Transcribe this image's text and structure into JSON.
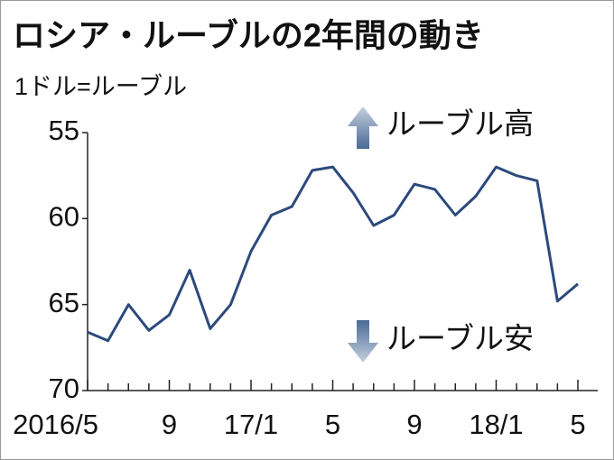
{
  "chart_data": {
    "type": "line",
    "title": "ロシア・ルーブルの2年間の動き",
    "subtitle": "1ドル=ルーブル",
    "annotations": [
      "ルーブル高",
      "ルーブル安"
    ],
    "categories": [
      "2016/5",
      null,
      null,
      null,
      "9",
      null,
      null,
      null,
      "17/1",
      null,
      null,
      null,
      "5",
      null,
      null,
      null,
      "9",
      null,
      null,
      null,
      "18/1",
      null,
      null,
      null,
      "5"
    ],
    "series": [
      {
        "color": "#2c4a7c",
        "values": [
          66.6,
          67.1,
          65.0,
          66.5,
          65.6,
          63.0,
          66.4,
          65.0,
          61.9,
          59.8,
          59.3,
          57.2,
          57.0,
          58.5,
          60.4,
          59.8,
          58.0,
          58.3,
          59.8,
          58.7,
          57.0,
          57.5,
          57.8,
          64.8,
          63.8
        ]
      }
    ],
    "ylim": [
      55,
      70
    ],
    "y_inverted": true,
    "yticks": [
      55,
      60,
      65,
      70
    ],
    "grid": false
  }
}
